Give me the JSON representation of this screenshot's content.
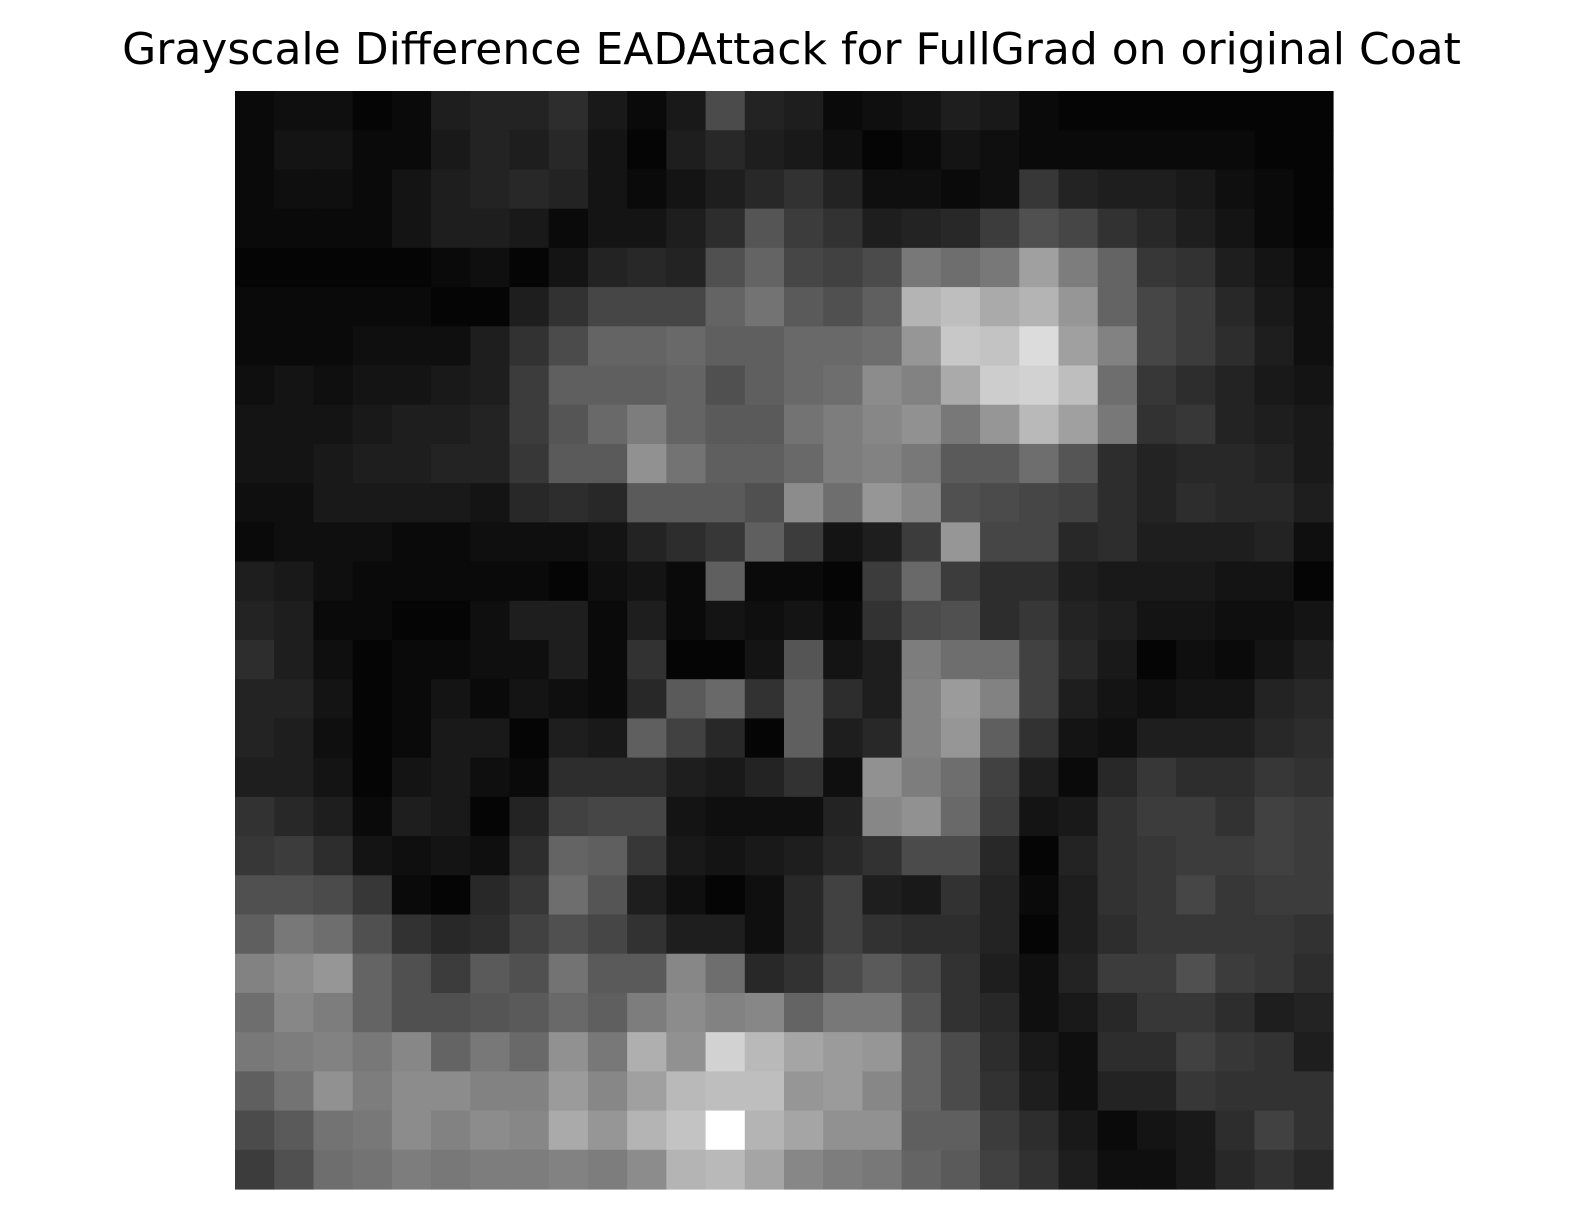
{
  "chart_data": {
    "type": "heatmap",
    "title": "Grayscale Difference EADAttack for FullGrad on original Coat",
    "xlabel": "",
    "ylabel": "",
    "rows": 28,
    "cols": 28,
    "colormap": "gray",
    "vmin": 0,
    "vmax": 255,
    "axes_visible": false,
    "grid": false,
    "values": [
      [
        10,
        15,
        15,
        5,
        10,
        30,
        35,
        35,
        45,
        25,
        10,
        25,
        75,
        35,
        30,
        10,
        15,
        20,
        30,
        25,
        10,
        5,
        5,
        5,
        5,
        5,
        5,
        5
      ],
      [
        10,
        20,
        20,
        10,
        10,
        25,
        35,
        30,
        40,
        20,
        5,
        30,
        40,
        30,
        25,
        15,
        5,
        10,
        20,
        15,
        10,
        10,
        10,
        10,
        10,
        10,
        5,
        5
      ],
      [
        10,
        15,
        15,
        10,
        20,
        30,
        35,
        40,
        35,
        20,
        10,
        20,
        30,
        40,
        50,
        35,
        15,
        15,
        10,
        15,
        55,
        35,
        30,
        30,
        25,
        15,
        10,
        5
      ],
      [
        10,
        10,
        10,
        10,
        20,
        30,
        30,
        25,
        10,
        20,
        20,
        30,
        45,
        85,
        60,
        50,
        30,
        35,
        40,
        60,
        80,
        70,
        50,
        40,
        30,
        20,
        10,
        5
      ],
      [
        5,
        5,
        5,
        5,
        5,
        10,
        15,
        5,
        20,
        35,
        40,
        35,
        80,
        100,
        70,
        65,
        75,
        120,
        110,
        120,
        160,
        125,
        100,
        55,
        50,
        30,
        20,
        10
      ],
      [
        10,
        10,
        10,
        10,
        10,
        5,
        5,
        30,
        50,
        70,
        70,
        70,
        100,
        115,
        90,
        80,
        95,
        180,
        190,
        170,
        180,
        150,
        100,
        70,
        60,
        40,
        25,
        15
      ],
      [
        10,
        10,
        10,
        15,
        15,
        15,
        30,
        50,
        75,
        100,
        100,
        105,
        95,
        95,
        105,
        105,
        110,
        150,
        200,
        195,
        220,
        160,
        130,
        70,
        60,
        45,
        30,
        15
      ],
      [
        15,
        20,
        15,
        20,
        20,
        25,
        30,
        60,
        95,
        95,
        95,
        100,
        80,
        95,
        105,
        110,
        140,
        130,
        170,
        205,
        210,
        190,
        110,
        55,
        45,
        35,
        25,
        20
      ],
      [
        20,
        20,
        20,
        25,
        30,
        30,
        35,
        60,
        85,
        105,
        125,
        100,
        90,
        90,
        115,
        125,
        135,
        145,
        120,
        150,
        185,
        160,
        120,
        50,
        55,
        35,
        30,
        25
      ],
      [
        20,
        20,
        25,
        30,
        30,
        35,
        35,
        55,
        90,
        90,
        145,
        115,
        95,
        95,
        105,
        125,
        130,
        120,
        90,
        90,
        110,
        85,
        45,
        35,
        40,
        40,
        35,
        25
      ],
      [
        15,
        15,
        25,
        25,
        25,
        25,
        20,
        40,
        45,
        40,
        90,
        90,
        90,
        80,
        140,
        110,
        150,
        135,
        80,
        75,
        70,
        65,
        45,
        35,
        45,
        40,
        40,
        30
      ],
      [
        10,
        15,
        15,
        15,
        10,
        10,
        15,
        15,
        15,
        20,
        35,
        45,
        55,
        95,
        60,
        20,
        30,
        60,
        150,
        70,
        70,
        40,
        45,
        30,
        30,
        30,
        35,
        15
      ],
      [
        30,
        25,
        15,
        10,
        10,
        10,
        10,
        10,
        5,
        15,
        20,
        10,
        95,
        10,
        10,
        5,
        60,
        105,
        60,
        45,
        45,
        30,
        25,
        25,
        25,
        20,
        20,
        5
      ],
      [
        35,
        30,
        10,
        10,
        5,
        5,
        15,
        30,
        30,
        10,
        30,
        10,
        20,
        15,
        20,
        10,
        50,
        75,
        80,
        45,
        55,
        35,
        30,
        20,
        20,
        15,
        15,
        20
      ],
      [
        45,
        30,
        15,
        5,
        10,
        10,
        15,
        15,
        30,
        10,
        50,
        5,
        5,
        20,
        85,
        20,
        30,
        125,
        110,
        110,
        65,
        40,
        25,
        5,
        15,
        10,
        20,
        30
      ],
      [
        35,
        35,
        20,
        5,
        10,
        20,
        10,
        20,
        15,
        10,
        40,
        90,
        105,
        50,
        95,
        45,
        30,
        130,
        155,
        130,
        65,
        30,
        20,
        15,
        20,
        20,
        35,
        40
      ],
      [
        35,
        30,
        15,
        5,
        10,
        25,
        25,
        5,
        30,
        25,
        95,
        65,
        40,
        5,
        95,
        30,
        40,
        130,
        150,
        95,
        50,
        20,
        15,
        30,
        30,
        30,
        40,
        45
      ],
      [
        30,
        30,
        20,
        5,
        20,
        25,
        15,
        10,
        45,
        45,
        45,
        30,
        25,
        35,
        50,
        15,
        145,
        125,
        110,
        65,
        30,
        10,
        40,
        55,
        45,
        45,
        55,
        50
      ],
      [
        50,
        40,
        30,
        10,
        30,
        25,
        5,
        35,
        65,
        70,
        70,
        20,
        15,
        15,
        15,
        35,
        135,
        145,
        105,
        60,
        20,
        25,
        50,
        60,
        60,
        50,
        65,
        60
      ],
      [
        55,
        60,
        45,
        20,
        15,
        20,
        15,
        45,
        100,
        95,
        55,
        25,
        20,
        25,
        30,
        40,
        50,
        75,
        75,
        40,
        5,
        35,
        50,
        55,
        60,
        60,
        65,
        60
      ],
      [
        80,
        80,
        75,
        55,
        10,
        5,
        40,
        55,
        110,
        85,
        30,
        15,
        5,
        15,
        40,
        65,
        30,
        25,
        50,
        35,
        10,
        30,
        50,
        55,
        70,
        55,
        60,
        60
      ],
      [
        95,
        120,
        110,
        80,
        50,
        40,
        45,
        65,
        80,
        70,
        50,
        30,
        30,
        15,
        40,
        65,
        50,
        45,
        45,
        35,
        5,
        30,
        45,
        55,
        55,
        55,
        55,
        50
      ],
      [
        130,
        140,
        150,
        100,
        80,
        60,
        90,
        80,
        115,
        90,
        90,
        135,
        110,
        40,
        50,
        75,
        90,
        75,
        50,
        30,
        15,
        35,
        60,
        60,
        80,
        60,
        55,
        45
      ],
      [
        110,
        135,
        125,
        100,
        80,
        80,
        85,
        90,
        105,
        95,
        125,
        140,
        130,
        135,
        100,
        120,
        120,
        85,
        50,
        40,
        15,
        25,
        40,
        55,
        55,
        45,
        30,
        35
      ],
      [
        120,
        125,
        130,
        120,
        135,
        100,
        120,
        105,
        145,
        120,
        175,
        145,
        210,
        185,
        165,
        155,
        150,
        100,
        75,
        45,
        25,
        15,
        45,
        45,
        65,
        55,
        50,
        30
      ],
      [
        95,
        115,
        145,
        125,
        140,
        140,
        130,
        130,
        155,
        135,
        160,
        185,
        190,
        190,
        150,
        155,
        135,
        100,
        75,
        50,
        30,
        15,
        35,
        35,
        55,
        50,
        50,
        50
      ],
      [
        75,
        90,
        115,
        120,
        140,
        130,
        140,
        135,
        170,
        150,
        180,
        195,
        255,
        180,
        165,
        145,
        145,
        95,
        95,
        60,
        45,
        25,
        10,
        20,
        25,
        45,
        65,
        50
      ],
      [
        60,
        80,
        110,
        115,
        125,
        120,
        125,
        125,
        130,
        125,
        140,
        180,
        185,
        165,
        135,
        125,
        120,
        100,
        90,
        65,
        50,
        30,
        15,
        15,
        25,
        40,
        50,
        40
      ]
    ]
  }
}
